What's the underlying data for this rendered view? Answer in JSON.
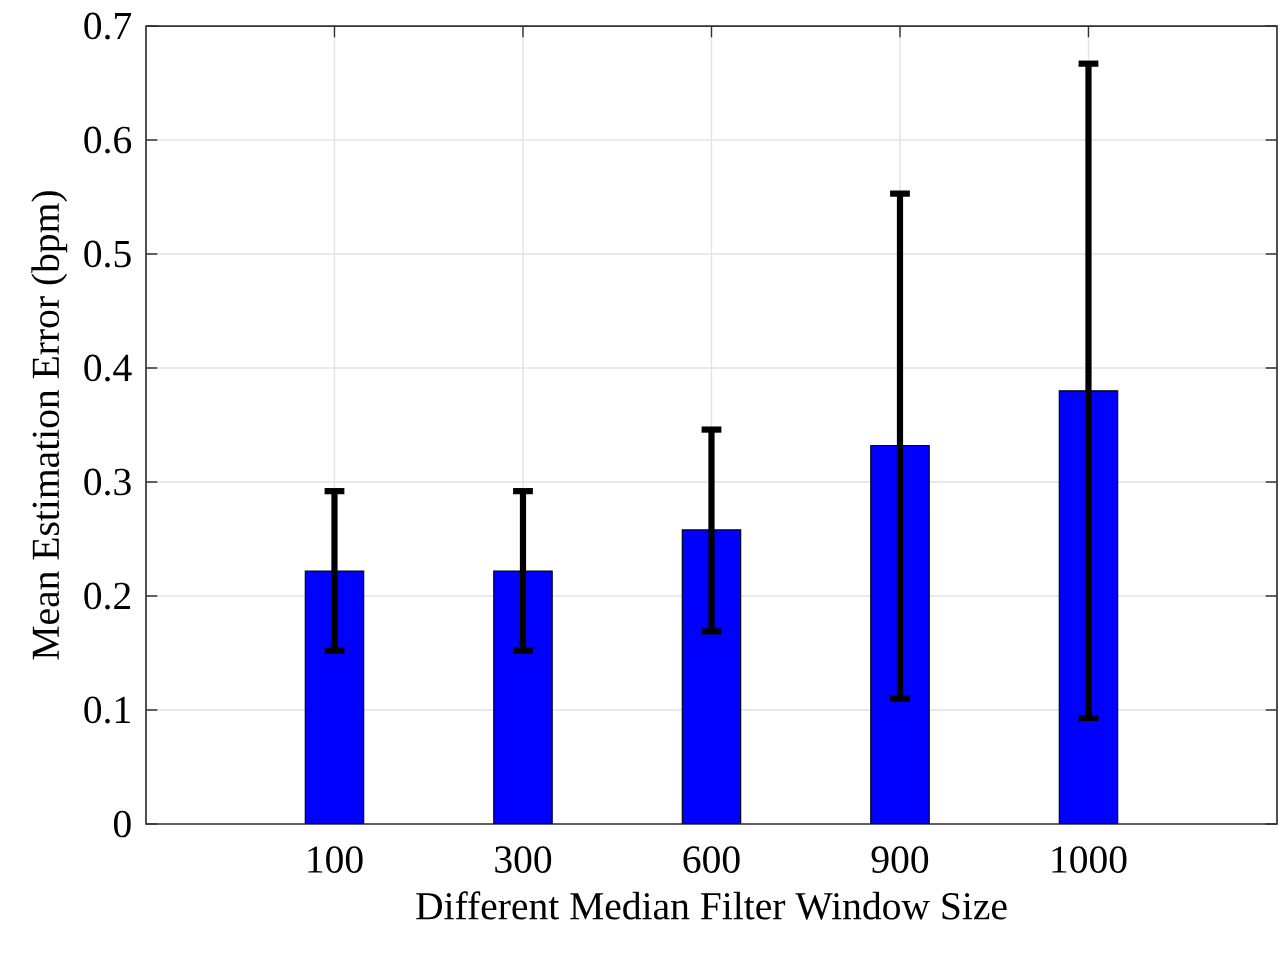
{
  "chart_data": {
    "type": "bar",
    "xlabel": "Different Median Filter Window Size",
    "ylabel": "Mean Estimation Error (bpm)",
    "categories": [
      "100",
      "300",
      "600",
      "900",
      "1000"
    ],
    "values": [
      0.222,
      0.222,
      0.258,
      0.332,
      0.38
    ],
    "errors": [
      [
        0.152,
        0.292
      ],
      [
        0.152,
        0.292
      ],
      [
        0.169,
        0.346
      ],
      [
        0.11,
        0.553
      ],
      [
        0.093,
        0.667
      ]
    ],
    "color": "#0000ff",
    "ylim": [
      0,
      0.7
    ],
    "yticks": [
      0,
      0.1,
      0.2,
      0.3,
      0.4,
      0.5,
      0.6,
      0.7
    ],
    "grid": true
  }
}
